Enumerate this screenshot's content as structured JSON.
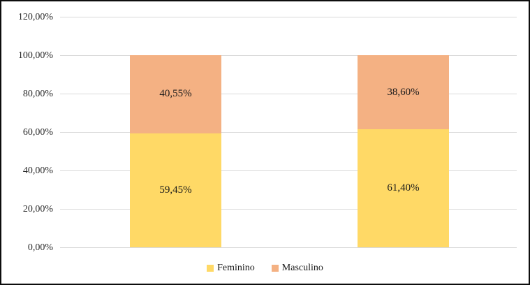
{
  "chart_data": {
    "type": "bar",
    "stacked": true,
    "title": "",
    "xlabel": "",
    "ylabel": "",
    "categories": [
      "",
      ""
    ],
    "series": [
      {
        "name": "Feminino",
        "color": "#FFD966",
        "values": [
          59.45,
          61.4
        ],
        "value_labels": [
          "59,45%",
          "61,40%"
        ]
      },
      {
        "name": "Masculino",
        "color": "#F4B183",
        "values": [
          40.55,
          38.6
        ],
        "value_labels": [
          "40,55%",
          "38,60%"
        ]
      }
    ],
    "ylim": [
      0,
      120
    ],
    "ytick_step": 20,
    "ytick_labels": [
      "0,00%",
      "20,00%",
      "40,00%",
      "60,00%",
      "80,00%",
      "100,00%",
      "120,00%"
    ],
    "grid": true,
    "legend_position": "bottom"
  },
  "colors": {
    "gridline": "#d9d9d9",
    "border": "#0d0d0d",
    "background": "#ffffff",
    "tick_text": "#2b2b2b",
    "label_text": "#1a1a1a"
  }
}
